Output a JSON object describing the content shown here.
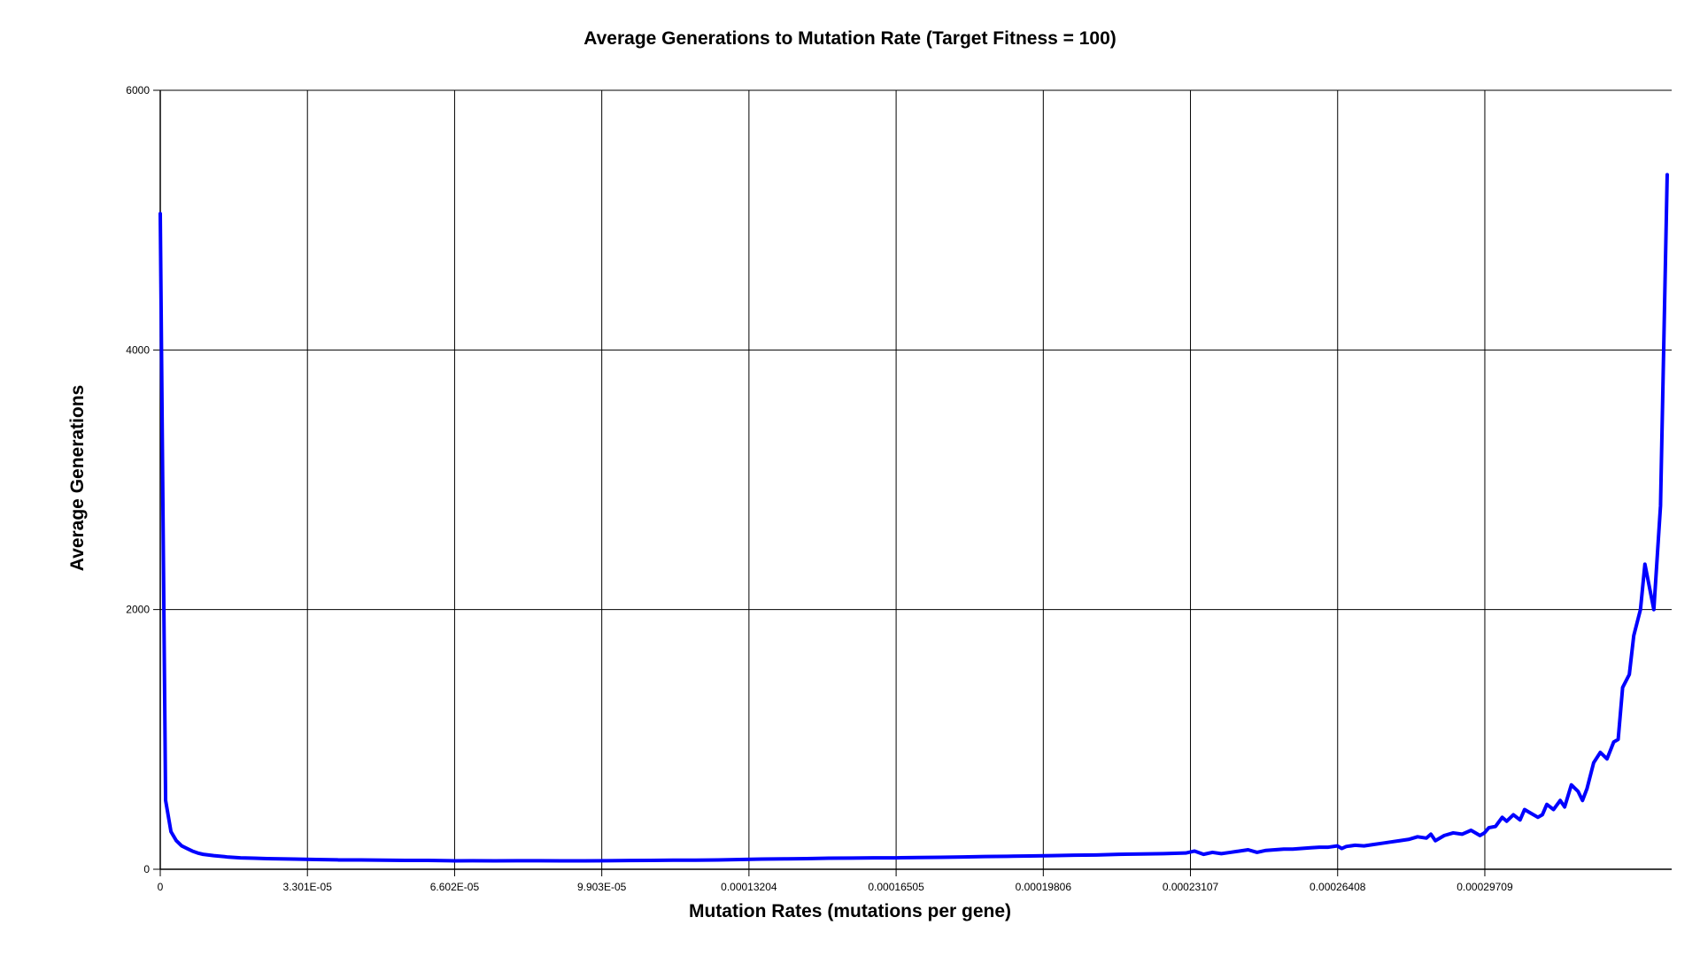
{
  "chart_data": {
    "type": "line",
    "title": "Average Generations to Mutation Rate (Target Fitness = 100)",
    "xlabel": "Mutation Rates (mutations per gene)",
    "ylabel": "Average Generations",
    "xlim": [
      0,
      0.000339
    ],
    "ylim": [
      0,
      6000
    ],
    "grid": true,
    "legend": "none",
    "line_color": "#0000ff",
    "grid_color": "#000000",
    "x_ticks": [
      {
        "value": 0,
        "label": "0"
      },
      {
        "value": 3.301e-05,
        "label": "3.301E-05"
      },
      {
        "value": 6.602e-05,
        "label": "6.602E-05"
      },
      {
        "value": 9.903e-05,
        "label": "9.903E-05"
      },
      {
        "value": 0.00013204,
        "label": "0.00013204"
      },
      {
        "value": 0.00016505,
        "label": "0.00016505"
      },
      {
        "value": 0.00019806,
        "label": "0.00019806"
      },
      {
        "value": 0.00023107,
        "label": "0.00023107"
      },
      {
        "value": 0.00026408,
        "label": "0.00026408"
      },
      {
        "value": 0.00029709,
        "label": "0.00029709"
      }
    ],
    "y_ticks": [
      {
        "value": 0,
        "label": "0"
      },
      {
        "value": 2000,
        "label": "2000"
      },
      {
        "value": 4000,
        "label": "4000"
      },
      {
        "value": 6000,
        "label": "6000"
      }
    ],
    "series": [
      {
        "name": "Average Generations",
        "x": [
          0,
          1.2e-06,
          2.4e-06,
          3.6e-06,
          4.8e-06,
          6e-06,
          7.2e-06,
          8.4e-06,
          9.6e-06,
          1.2e-05,
          1.5e-05,
          1.8e-05,
          2.1e-05,
          2.4e-05,
          2.7e-05,
          3e-05,
          3.5e-05,
          4e-05,
          4.5e-05,
          5e-05,
          5.5e-05,
          6e-05,
          6.6e-05,
          7e-05,
          7.5e-05,
          8e-05,
          8.5e-05,
          9e-05,
          9.5e-05,
          0.0001,
          0.000105,
          0.00011,
          0.000115,
          0.00012,
          0.000125,
          0.00013,
          0.000135,
          0.00014,
          0.000145,
          0.00015,
          0.000155,
          0.00016,
          0.000165,
          0.00017,
          0.000175,
          0.00018,
          0.000185,
          0.00019,
          0.000195,
          0.0002,
          0.000205,
          0.00021,
          0.000215,
          0.00022,
          0.000225,
          0.00023,
          0.000232,
          0.000234,
          0.000236,
          0.000238,
          0.00024,
          0.000242,
          0.000244,
          0.000246,
          0.000248,
          0.00025,
          0.000252,
          0.000254,
          0.000256,
          0.000258,
          0.00026,
          0.000262,
          0.000264,
          0.000265,
          0.000266,
          0.000268,
          0.00027,
          0.000272,
          0.000274,
          0.000276,
          0.000278,
          0.00028,
          0.000282,
          0.000284,
          0.000285,
          0.000286,
          0.000288,
          0.00029,
          0.000292,
          0.000294,
          0.000296,
          0.000297,
          0.000298,
          0.0002995,
          0.000301,
          0.000302,
          0.0003035,
          0.000305,
          0.000306,
          0.000307,
          0.000309,
          0.00031,
          0.000311,
          0.0003125,
          0.000314,
          0.000315,
          0.0003165,
          0.000318,
          0.000319,
          0.00032,
          0.0003215,
          0.000323,
          0.0003245,
          0.000326,
          0.000327,
          0.000328,
          0.0003295,
          0.0003305,
          0.000332,
          0.000333,
          0.000335,
          0.0003365,
          0.000338
        ],
        "values": [
          5050,
          530,
          290,
          220,
          180,
          160,
          140,
          125,
          115,
          105,
          95,
          88,
          85,
          82,
          80,
          78,
          75,
          72,
          72,
          70,
          68,
          68,
          65,
          66,
          65,
          66,
          66,
          65,
          65,
          66,
          67,
          68,
          70,
          70,
          72,
          75,
          78,
          80,
          82,
          85,
          86,
          88,
          88,
          90,
          92,
          95,
          98,
          100,
          102,
          105,
          108,
          110,
          115,
          118,
          120,
          125,
          140,
          115,
          130,
          120,
          130,
          140,
          150,
          130,
          145,
          150,
          155,
          155,
          160,
          165,
          170,
          170,
          180,
          160,
          175,
          185,
          180,
          190,
          200,
          210,
          220,
          230,
          250,
          240,
          270,
          220,
          260,
          280,
          270,
          300,
          260,
          280,
          320,
          330,
          400,
          370,
          420,
          380,
          460,
          440,
          400,
          420,
          500,
          460,
          530,
          480,
          650,
          600,
          530,
          620,
          820,
          900,
          850,
          980,
          1000,
          1400,
          1500,
          1800,
          2000,
          2350,
          2000,
          2800,
          5350
        ]
      }
    ]
  }
}
